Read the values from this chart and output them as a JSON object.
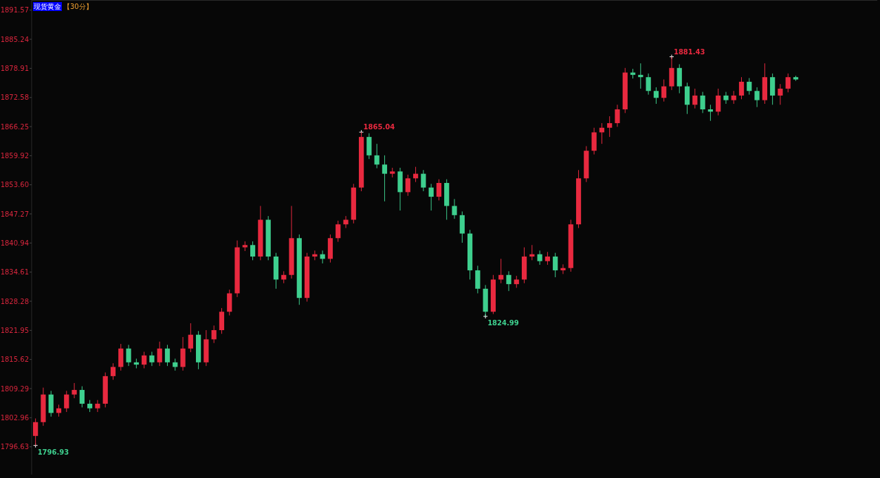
{
  "chart_data": {
    "type": "candlestick",
    "title": "现货黄金",
    "subtitle": "【30分】",
    "categories": [
      null,
      null,
      null,
      null,
      null,
      null,
      null,
      null,
      null,
      null,
      null,
      null,
      null,
      null,
      null,
      null,
      null,
      null,
      null,
      null,
      null,
      null,
      null,
      null,
      null,
      null,
      null,
      null,
      null,
      null,
      null,
      null,
      null,
      null,
      null,
      null,
      null,
      null,
      null,
      null,
      null,
      null,
      null,
      null,
      null,
      null,
      null,
      null,
      null,
      null,
      null,
      null,
      null,
      null,
      null,
      null,
      null,
      null,
      null,
      null,
      null,
      null,
      null,
      null,
      null,
      null,
      null,
      null,
      null,
      null,
      null,
      null,
      null,
      null,
      null,
      null,
      null,
      null,
      null,
      null,
      null,
      null,
      null,
      null,
      null,
      null,
      null,
      null,
      null,
      null,
      null,
      null,
      null,
      null,
      null,
      null,
      null,
      null,
      null
    ],
    "ohlc": [
      [
        1799,
        1802.8,
        1796.93,
        1802
      ],
      [
        1802,
        1809.5,
        1801.2,
        1808
      ],
      [
        1808,
        1808.8,
        1803.2,
        1804
      ],
      [
        1804,
        1805.8,
        1803.2,
        1805
      ],
      [
        1805,
        1808.8,
        1804.2,
        1808
      ],
      [
        1808,
        1810.5,
        1807.2,
        1809
      ],
      [
        1809,
        1809.8,
        1805.2,
        1806
      ],
      [
        1806,
        1806.8,
        1804.2,
        1805
      ],
      [
        1805,
        1806.8,
        1804.2,
        1806
      ],
      [
        1806,
        1812.8,
        1805.2,
        1812
      ],
      [
        1812,
        1814.8,
        1811.2,
        1814
      ],
      [
        1814,
        1819,
        1813.2,
        1818
      ],
      [
        1818,
        1818.8,
        1814.2,
        1815
      ],
      [
        1815,
        1815.8,
        1813.7,
        1814.5
      ],
      [
        1814.5,
        1817.3,
        1813.7,
        1816.5
      ],
      [
        1816.5,
        1817.3,
        1814.2,
        1815
      ],
      [
        1815,
        1819.5,
        1814.2,
        1818
      ],
      [
        1818,
        1818.8,
        1814.2,
        1815
      ],
      [
        1815,
        1815.8,
        1813.2,
        1814
      ],
      [
        1814,
        1820.5,
        1813.2,
        1818
      ],
      [
        1818,
        1823.5,
        1817.2,
        1821
      ],
      [
        1821,
        1821.8,
        1813.5,
        1815
      ],
      [
        1815,
        1822,
        1814.2,
        1820
      ],
      [
        1820,
        1823,
        1819.2,
        1822
      ],
      [
        1822,
        1826.8,
        1821.2,
        1826
      ],
      [
        1826,
        1830.8,
        1825.2,
        1830
      ],
      [
        1830,
        1841.5,
        1829.2,
        1840
      ],
      [
        1840,
        1841.3,
        1839.2,
        1840.5
      ],
      [
        1840.5,
        1841.3,
        1837.2,
        1838
      ],
      [
        1838,
        1849,
        1837.2,
        1846
      ],
      [
        1846,
        1846.8,
        1837.2,
        1838
      ],
      [
        1838,
        1838.8,
        1831,
        1833
      ],
      [
        1833,
        1834.8,
        1832.2,
        1834
      ],
      [
        1834,
        1849,
        1833.2,
        1842
      ],
      [
        1842,
        1842.8,
        1827.5,
        1829
      ],
      [
        1829,
        1838.8,
        1828.2,
        1838
      ],
      [
        1838,
        1839.3,
        1837.2,
        1838.5
      ],
      [
        1838.5,
        1839.3,
        1836.5,
        1837.5
      ],
      [
        1837.5,
        1842.8,
        1836.7,
        1842
      ],
      [
        1842,
        1845.8,
        1841.2,
        1845
      ],
      [
        1845,
        1846.8,
        1844.2,
        1846
      ],
      [
        1846,
        1853.8,
        1845.2,
        1853
      ],
      [
        1853,
        1865.04,
        1852.2,
        1864
      ],
      [
        1864,
        1864.8,
        1859.2,
        1860
      ],
      [
        1860,
        1862.5,
        1857.2,
        1858
      ],
      [
        1858,
        1860,
        1850,
        1856
      ],
      [
        1856,
        1857.3,
        1855.2,
        1856.5
      ],
      [
        1856.5,
        1857.3,
        1848,
        1852
      ],
      [
        1852,
        1855.8,
        1851.2,
        1855
      ],
      [
        1855,
        1857.5,
        1854.2,
        1856
      ],
      [
        1856,
        1856.8,
        1852.2,
        1853
      ],
      [
        1853,
        1853.8,
        1848,
        1851
      ],
      [
        1851,
        1854.8,
        1850.2,
        1854
      ],
      [
        1854,
        1854.8,
        1846,
        1849
      ],
      [
        1849,
        1850.5,
        1846.2,
        1847
      ],
      [
        1847,
        1847.8,
        1841,
        1843
      ],
      [
        1843,
        1843.8,
        1833,
        1835
      ],
      [
        1835,
        1836,
        1830,
        1831
      ],
      [
        1831,
        1831.8,
        1824.99,
        1826
      ],
      [
        1826,
        1834,
        1825.5,
        1833
      ],
      [
        1833,
        1837.5,
        1832.2,
        1834
      ],
      [
        1834,
        1834.8,
        1830.5,
        1832
      ],
      [
        1832,
        1833.8,
        1831.2,
        1833
      ],
      [
        1833,
        1840,
        1832.2,
        1838
      ],
      [
        1838,
        1840.5,
        1837.2,
        1838.5
      ],
      [
        1838.5,
        1839.3,
        1836.2,
        1837
      ],
      [
        1837,
        1839,
        1836.2,
        1838
      ],
      [
        1838,
        1838.8,
        1833.5,
        1835
      ],
      [
        1835,
        1836.3,
        1834.2,
        1835.5
      ],
      [
        1835.5,
        1846,
        1834.7,
        1845
      ],
      [
        1845,
        1856.8,
        1844.2,
        1855
      ],
      [
        1855,
        1862,
        1854.2,
        1861
      ],
      [
        1861,
        1866,
        1860.2,
        1865
      ],
      [
        1865,
        1867,
        1862.5,
        1866
      ],
      [
        1866,
        1868.5,
        1864,
        1867
      ],
      [
        1867,
        1871,
        1866.2,
        1870
      ],
      [
        1870,
        1879,
        1869.2,
        1878
      ],
      [
        1878,
        1878.8,
        1876.7,
        1877.5
      ],
      [
        1877.5,
        1880,
        1874.5,
        1877
      ],
      [
        1877,
        1877.8,
        1873.2,
        1874
      ],
      [
        1874,
        1874.8,
        1871.2,
        1872.5
      ],
      [
        1872.5,
        1876.5,
        1871.7,
        1875
      ],
      [
        1875,
        1881.43,
        1874.2,
        1879
      ],
      [
        1879,
        1879.8,
        1873.5,
        1875
      ],
      [
        1875,
        1875.8,
        1869,
        1871
      ],
      [
        1871,
        1874.5,
        1870.2,
        1873
      ],
      [
        1873,
        1873.8,
        1869.2,
        1870
      ],
      [
        1870,
        1871,
        1867.5,
        1869.5
      ],
      [
        1869.5,
        1874.5,
        1868.7,
        1873
      ],
      [
        1873,
        1873.8,
        1871.2,
        1872
      ],
      [
        1872,
        1874,
        1871.2,
        1873
      ],
      [
        1873,
        1877,
        1872.2,
        1876
      ],
      [
        1876,
        1876.8,
        1873.2,
        1874
      ],
      [
        1874,
        1874.8,
        1870.5,
        1872
      ],
      [
        1872,
        1880,
        1871.2,
        1877
      ],
      [
        1877,
        1877.8,
        1871,
        1873
      ],
      [
        1873,
        1875.5,
        1871,
        1874.5
      ],
      [
        1874.5,
        1877.8,
        1873.7,
        1877
      ],
      [
        1877,
        1877.3,
        1876.2,
        1876.5
      ]
    ],
    "colors": [
      "#e8293f",
      "#e8293f",
      "#3ecf8e",
      "#e8293f",
      "#e8293f",
      "#e8293f",
      "#3ecf8e",
      "#3ecf8e",
      "#e8293f",
      "#e8293f",
      "#e8293f",
      "#e8293f",
      "#3ecf8e",
      "#3ecf8e",
      "#e8293f",
      "#3ecf8e",
      "#e8293f",
      "#3ecf8e",
      "#3ecf8e",
      "#e8293f",
      "#e8293f",
      "#3ecf8e",
      "#e8293f",
      "#e8293f",
      "#e8293f",
      "#e8293f",
      "#e8293f",
      "#e8293f",
      "#3ecf8e",
      "#e8293f",
      "#3ecf8e",
      "#3ecf8e",
      "#e8293f",
      "#e8293f",
      "#3ecf8e",
      "#e8293f",
      "#e8293f",
      "#3ecf8e",
      "#e8293f",
      "#e8293f",
      "#e8293f",
      "#e8293f",
      "#e8293f",
      "#3ecf8e",
      "#3ecf8e",
      "#3ecf8e",
      "#e8293f",
      "#3ecf8e",
      "#e8293f",
      "#e8293f",
      "#3ecf8e",
      "#3ecf8e",
      "#e8293f",
      "#3ecf8e",
      "#3ecf8e",
      "#3ecf8e",
      "#3ecf8e",
      "#3ecf8e",
      "#3ecf8e",
      "#e8293f",
      "#e8293f",
      "#3ecf8e",
      "#e8293f",
      "#e8293f",
      "#e8293f",
      "#3ecf8e",
      "#e8293f",
      "#3ecf8e",
      "#e8293f",
      "#e8293f",
      "#e8293f",
      "#e8293f",
      "#e8293f",
      "#e8293f",
      "#e8293f",
      "#e8293f",
      "#e8293f",
      "#3ecf8e",
      "#3ecf8e",
      "#3ecf8e",
      "#3ecf8e",
      "#e8293f",
      "#e8293f",
      "#3ecf8e",
      "#3ecf8e",
      "#e8293f",
      "#3ecf8e",
      "#3ecf8e",
      "#e8293f",
      "#3ecf8e",
      "#e8293f",
      "#e8293f",
      "#3ecf8e",
      "#3ecf8e",
      "#e8293f",
      "#3ecf8e",
      "#e8293f",
      "#e8293f",
      "#3ecf8e"
    ],
    "ylim": [
      1790.6,
      1893.7
    ],
    "yticks": [
      1796.63,
      1802.96,
      1809.29,
      1815.62,
      1821.95,
      1828.28,
      1834.61,
      1840.94,
      1847.27,
      {
        "value": 1853.6,
        "label": "1853.60"
      },
      1859.92,
      1866.25,
      1872.58,
      1878.91,
      1885.24,
      1891.57
    ],
    "tick_labels": "y",
    "annotations": [
      "1796.93",
      "1865.04",
      "1824.99",
      "1881.43"
    ]
  }
}
